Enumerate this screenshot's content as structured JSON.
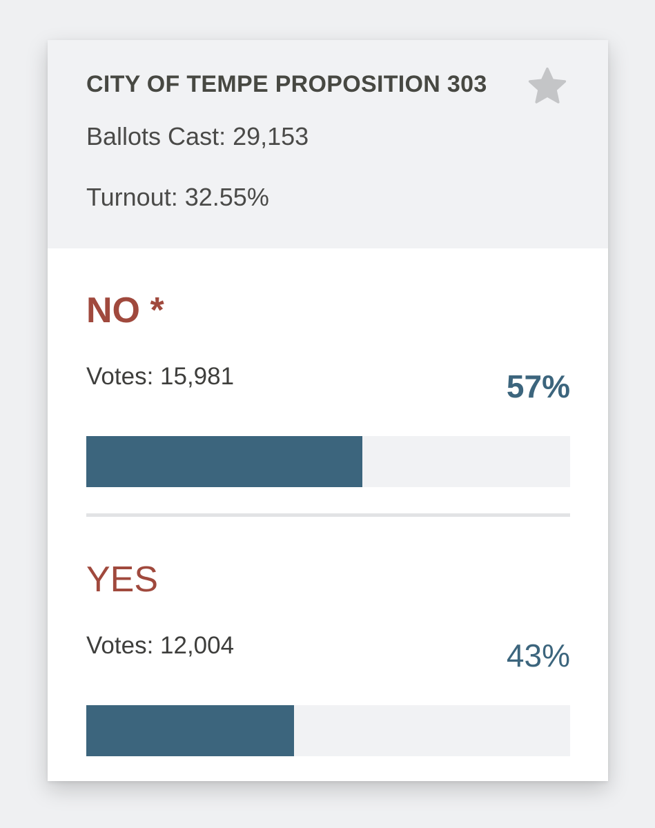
{
  "card": {
    "title": "CITY OF TEMPE PROPOSITION 303",
    "ballots_cast": "Ballots Cast: 29,153",
    "turnout": "Turnout: 32.55%",
    "favorite_icon": "star-icon"
  },
  "options": [
    {
      "name": "NO *",
      "votes": "Votes: 15,981",
      "percent_label": "57%",
      "percent_value": 57,
      "winner": true
    },
    {
      "name": "YES",
      "votes": "Votes: 12,004",
      "percent_label": "43%",
      "percent_value": 43,
      "winner": false
    }
  ],
  "colors": {
    "accent": "#3c657d",
    "option_name": "#a0493d",
    "header_bg": "#f1f2f4",
    "star": "#c4c5c7"
  }
}
